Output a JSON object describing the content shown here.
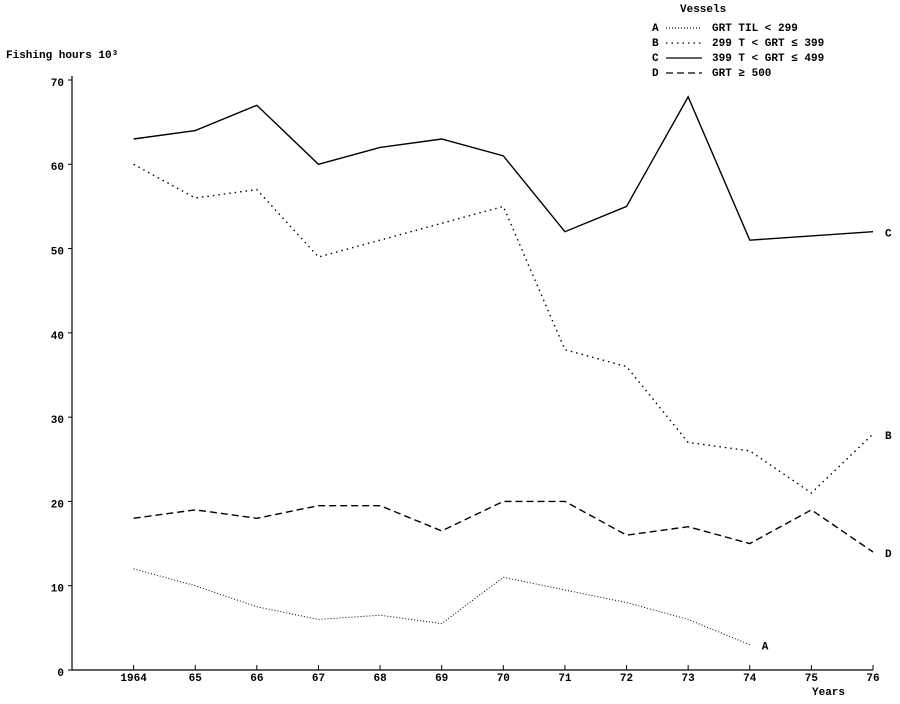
{
  "chart_data": {
    "type": "line",
    "ylabel": "Fishing hours 10³",
    "xlabel": "Years",
    "legend_title": "Vessels",
    "xlim": [
      1963,
      1976
    ],
    "xticks": [
      {
        "value": 1964,
        "label": "1964"
      },
      {
        "value": 1965,
        "label": "65"
      },
      {
        "value": 1966,
        "label": "66"
      },
      {
        "value": 1967,
        "label": "67"
      },
      {
        "value": 1968,
        "label": "68"
      },
      {
        "value": 1969,
        "label": "69"
      },
      {
        "value": 1970,
        "label": "70"
      },
      {
        "value": 1971,
        "label": "71"
      },
      {
        "value": 1972,
        "label": "72"
      },
      {
        "value": 1973,
        "label": "73"
      },
      {
        "value": 1974,
        "label": "74"
      },
      {
        "value": 1975,
        "label": "75"
      },
      {
        "value": 1976,
        "label": "76"
      }
    ],
    "ylim": [
      0,
      70
    ],
    "yticks": [
      0,
      10,
      20,
      30,
      40,
      50,
      60,
      70
    ],
    "series": [
      {
        "label": "A",
        "name": "GRT TIL < 299",
        "color": "#000000",
        "linestyle": "fine-dotted",
        "x": [
          1964,
          1965,
          1966,
          1967,
          1968,
          1969,
          1970,
          1971,
          1972,
          1973,
          1974
        ],
        "values": [
          12,
          10,
          7.5,
          6,
          6.5,
          5.5,
          11,
          9.5,
          8,
          6,
          3
        ]
      },
      {
        "label": "B",
        "name": "299 T < GRT ≤ 399",
        "color": "#000000",
        "linestyle": "dotted",
        "x": [
          1964,
          1965,
          1966,
          1967,
          1968,
          1969,
          1970,
          1971,
          1972,
          1973,
          1974,
          1975,
          1976
        ],
        "values": [
          60,
          56,
          57,
          49,
          51,
          53,
          55,
          38,
          36,
          27,
          26,
          21,
          28
        ]
      },
      {
        "label": "C",
        "name": "399 T < GRT ≤ 499",
        "color": "#000000",
        "linestyle": "solid",
        "x": [
          1964,
          1965,
          1966,
          1967,
          1968,
          1969,
          1970,
          1971,
          1972,
          1973,
          1974,
          1976
        ],
        "values": [
          63,
          64,
          67,
          60,
          62,
          63,
          61,
          52,
          55,
          68,
          51,
          52
        ]
      },
      {
        "label": "D",
        "name": "GRT ≥ 500",
        "color": "#000000",
        "linestyle": "dashed",
        "x": [
          1964,
          1965,
          1966,
          1967,
          1968,
          1969,
          1970,
          1971,
          1972,
          1973,
          1974,
          1975,
          1976
        ],
        "values": [
          18,
          19,
          18,
          19.5,
          19.5,
          16.5,
          20,
          20,
          16,
          17,
          15,
          19,
          14
        ]
      }
    ]
  }
}
